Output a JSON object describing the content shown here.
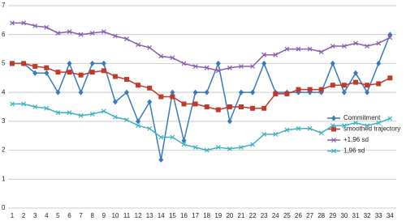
{
  "chart_data": {
    "type": "line",
    "categories": [
      "1",
      "2",
      "3",
      "4",
      "5",
      "6",
      "7",
      "8",
      "9",
      "10",
      "11",
      "12",
      "13",
      "14",
      "15",
      "16",
      "17",
      "18",
      "19",
      "20",
      "21",
      "22",
      "23",
      "24",
      "25",
      "26",
      "27",
      "28",
      "29",
      "30",
      "31",
      "32",
      "33",
      "34"
    ],
    "ylim": [
      0,
      7
    ],
    "yticks": [
      0,
      1,
      2,
      3,
      4,
      5,
      6,
      7
    ],
    "grid": true,
    "legend": "right",
    "series": [
      {
        "name": "Commitment",
        "color": "#3a78c0",
        "marker": "diamond",
        "values": [
          5,
          5,
          4.67,
          4.67,
          4,
          5,
          4,
          5,
          5,
          3.67,
          4,
          3,
          3.67,
          1.67,
          4,
          2.33,
          4,
          4,
          5,
          3,
          4,
          4,
          5,
          4,
          4,
          4,
          4,
          4,
          5,
          4,
          4.67,
          4,
          5,
          6
        ]
      },
      {
        "name": "smoothed trajectory",
        "color": "#c0392b",
        "marker": "square",
        "values": [
          5,
          5,
          4.9,
          4.85,
          4.7,
          4.7,
          4.6,
          4.7,
          4.75,
          4.55,
          4.45,
          4.25,
          4.15,
          3.85,
          3.85,
          3.6,
          3.6,
          3.5,
          3.4,
          3.5,
          3.5,
          3.45,
          3.45,
          3.95,
          3.95,
          4.1,
          4.1,
          4.1,
          4.25,
          4.25,
          4.35,
          4.25,
          4.3,
          4.5
        ]
      },
      {
        "name": "+1,96 sd",
        "color": "#8a5bb0",
        "marker": "x",
        "values": [
          6.4,
          6.4,
          6.3,
          6.25,
          6.05,
          6.1,
          6,
          6.05,
          6.1,
          5.95,
          5.85,
          5.65,
          5.55,
          5.25,
          5.2,
          5,
          4.9,
          4.85,
          4.75,
          4.85,
          4.9,
          4.9,
          5.3,
          5.3,
          5.5,
          5.5,
          5.5,
          5.4,
          5.6,
          5.6,
          5.7,
          5.6,
          5.7,
          5.9
        ]
      },
      {
        "name": "1,96 sd",
        "color": "#3bb3c3",
        "marker": "x",
        "values": [
          3.6,
          3.6,
          3.5,
          3.45,
          3.3,
          3.3,
          3.2,
          3.25,
          3.35,
          3.15,
          3.05,
          2.85,
          2.75,
          2.45,
          2.45,
          2.2,
          2.1,
          2,
          2.1,
          2.05,
          2.1,
          2.2,
          2.55,
          2.55,
          2.7,
          2.75,
          2.75,
          2.6,
          2.85,
          2.85,
          2.95,
          2.85,
          2.95,
          3.1
        ]
      }
    ]
  }
}
